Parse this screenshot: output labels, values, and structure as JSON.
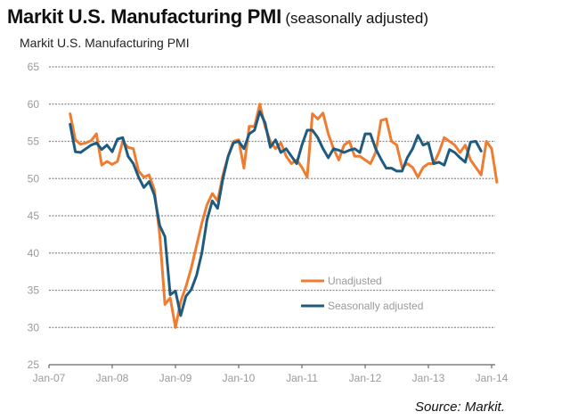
{
  "header": {
    "title_main": "Markit U.S. Manufacturing PMI",
    "title_sub": "(seasonally adjusted)"
  },
  "source": "Source: Markit.",
  "colors": {
    "unadjusted": "#ee7d31",
    "seasonally_adjusted": "#1f5a7f",
    "grid": "#8a8a8a",
    "axis": "#666666"
  },
  "chart_data": {
    "type": "line",
    "title": "Markit U.S. Manufacturing  PMI",
    "xlabel": "",
    "ylabel": "",
    "ylim": [
      25,
      65
    ],
    "yticks": [
      65,
      60,
      55,
      50,
      45,
      40,
      35,
      30,
      25
    ],
    "xlim": [
      "Jan-07",
      "Jan-14"
    ],
    "xticks": [
      "Jan-07",
      "Jan-08",
      "Jan-09",
      "Jan-10",
      "Jan-11",
      "Jan-12",
      "Jan-13",
      "Jan-14"
    ],
    "grid": true,
    "legend_position": "center-right",
    "start_month": "May-07",
    "frequency": "monthly",
    "series": [
      {
        "name": "Unadjusted",
        "color_key": "unadjusted",
        "values": [
          58.7,
          55.2,
          54.6,
          54.8,
          55.1,
          56.0,
          51.8,
          52.3,
          51.9,
          52.3,
          55.0,
          54.2,
          54.0,
          51.0,
          50.2,
          50.5,
          48.5,
          42.5,
          33.1,
          34.0,
          30.0,
          33.5,
          35.5,
          38.0,
          41.0,
          44.0,
          46.5,
          48.0,
          47.0,
          50.5,
          53.0,
          55.0,
          55.2,
          51.4,
          57.0,
          57.0,
          60.0,
          57.0,
          55.0,
          54.0,
          54.8,
          53.0,
          52.0,
          52.5,
          51.5,
          50.2,
          58.7,
          58.0,
          58.8,
          56.0,
          54.0,
          52.5,
          54.5,
          55.0,
          53.0,
          53.0,
          52.5,
          52.0,
          53.5,
          57.8,
          58.0,
          55.0,
          54.5,
          51.5,
          52.0,
          51.5,
          50.2,
          51.5,
          52.0,
          52.0,
          53.5,
          55.5,
          55.0,
          54.5,
          53.5,
          54.5,
          52.5,
          51.5,
          50.5,
          55.0,
          54.0,
          49.5
        ]
      },
      {
        "name": "Seasonally adjusted",
        "color_key": "seasonally_adjusted",
        "values": [
          57.3,
          53.6,
          53.5,
          54.0,
          54.5,
          54.8,
          53.9,
          54.5,
          53.6,
          55.3,
          55.5,
          53.0,
          52.0,
          50.2,
          48.8,
          49.6,
          47.8,
          43.7,
          42.2,
          34.4,
          34.9,
          31.6,
          34.2,
          35.1,
          37.0,
          40.0,
          44.5,
          47.0,
          46.0,
          50.0,
          53.0,
          54.8,
          55.0,
          54.0,
          56.0,
          56.5,
          59.0,
          57.5,
          54.2,
          55.2,
          53.5,
          54.0,
          53.0,
          52.0,
          54.5,
          56.5,
          56.5,
          55.5,
          54.0,
          52.8,
          54.0,
          53.8,
          53.5,
          53.8,
          54.0,
          53.5,
          56.0,
          56.0,
          54.0,
          52.6,
          51.4,
          51.4,
          51.0,
          51.0,
          52.8,
          54.0,
          55.8,
          54.5,
          54.8,
          52.0,
          52.2,
          51.8,
          53.9,
          53.5,
          52.8,
          52.2,
          54.9,
          55.0,
          53.7
        ]
      }
    ]
  }
}
